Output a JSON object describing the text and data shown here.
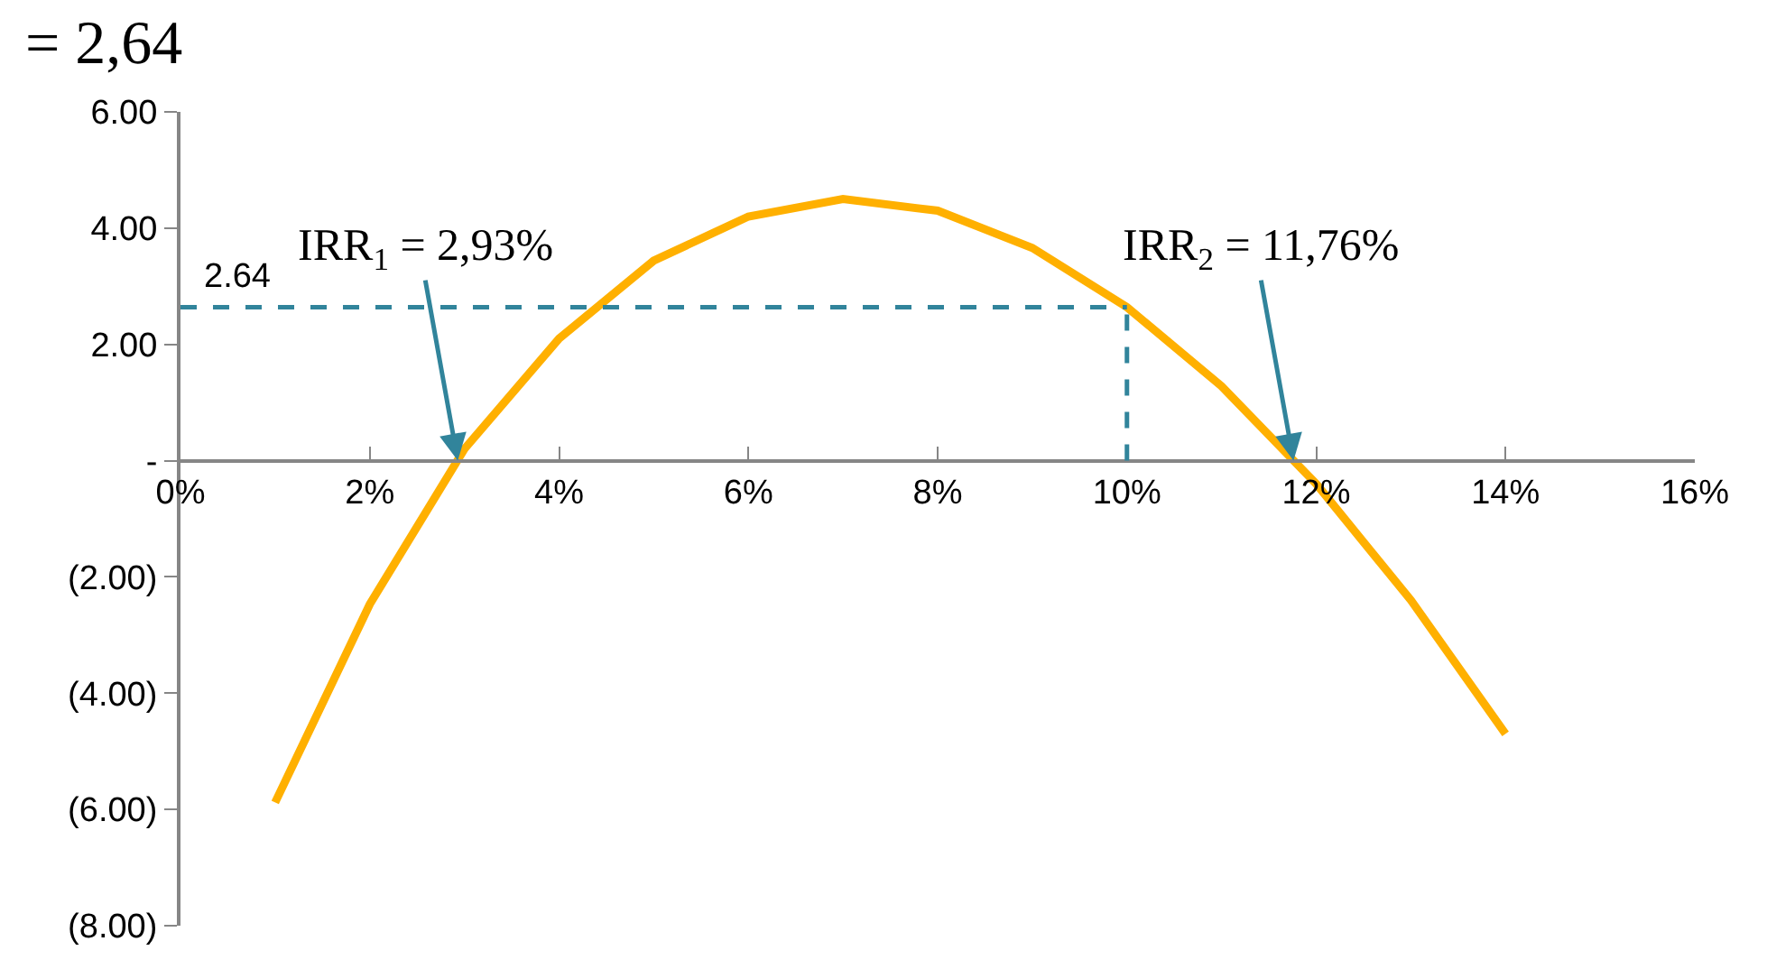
{
  "chart_data": {
    "type": "line",
    "x": [
      1,
      2,
      3,
      4,
      5,
      6,
      7,
      8,
      9,
      10,
      11,
      12,
      13,
      14
    ],
    "series": [
      {
        "color": "#ffb000",
        "values": [
          -5.88,
          -2.47,
          0.2,
          2.1,
          3.44,
          4.2,
          4.5,
          4.3,
          3.66,
          2.64,
          1.28,
          -0.4,
          -2.4,
          -4.7
        ]
      }
    ],
    "xlim": [
      0,
      16
    ],
    "xticks": [
      {
        "value": 0,
        "label": "0%"
      },
      {
        "value": 2,
        "label": "2%"
      },
      {
        "value": 4,
        "label": "4%"
      },
      {
        "value": 6,
        "label": "6%"
      },
      {
        "value": 8,
        "label": "8%"
      },
      {
        "value": 10,
        "label": "10%"
      },
      {
        "value": 12,
        "label": "12%"
      },
      {
        "value": 14,
        "label": "14%"
      },
      {
        "value": 16,
        "label": "16%"
      }
    ],
    "ylim": [
      -8,
      6
    ],
    "yticks": [
      {
        "value": 6,
        "label": "6.00"
      },
      {
        "value": 4,
        "label": "4.00"
      },
      {
        "value": 2,
        "label": "2.00"
      },
      {
        "value": 0,
        "label": "-"
      },
      {
        "value": -2,
        "label": "(2.00)"
      },
      {
        "value": -4,
        "label": "(4.00)"
      },
      {
        "value": -6,
        "label": "(6.00)"
      },
      {
        "value": -8,
        "label": "(8.00)"
      }
    ],
    "ref_lines": [
      {
        "axis": "y",
        "value": 2.64,
        "label": "2.64",
        "color": "#31849b",
        "line_style": "dashed"
      },
      {
        "axis": "x",
        "value": 10,
        "color": "#31849b",
        "line_style": "dashed"
      }
    ],
    "annotations": [
      "= 2,64",
      {
        "text": "IRR$_{1}$ = 2,93%",
        "x": 2.93,
        "y": 0
      },
      {
        "text": "IRR$_{2}$ = 11,76%",
        "x": 11.76,
        "y": 0
      }
    ],
    "marker": "none",
    "line_style": "solid"
  }
}
